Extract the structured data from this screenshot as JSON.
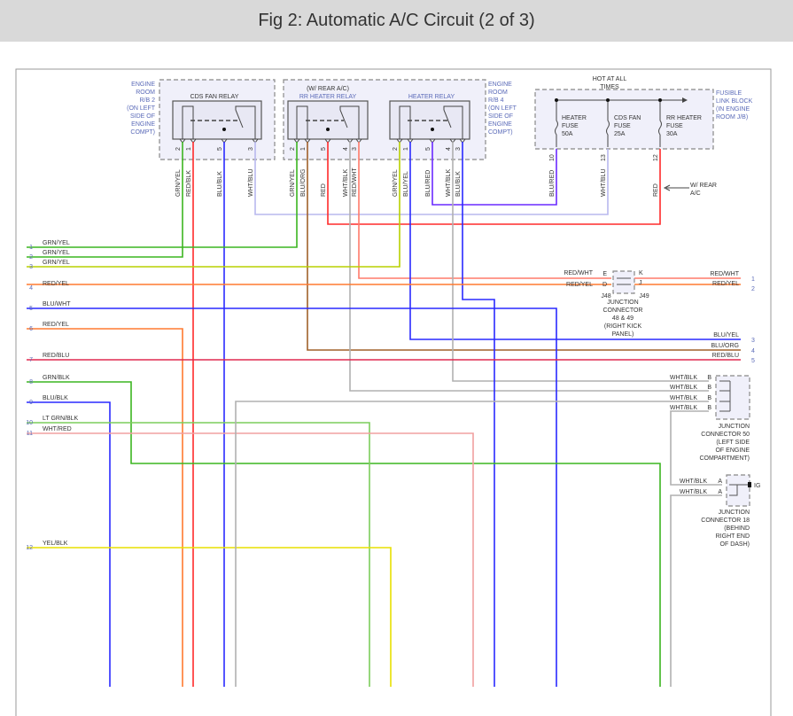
{
  "title": "Fig 2: Automatic A/C Circuit (2 of 3)",
  "colors": {
    "green": "#3cb521",
    "yelgrn": "#b8d000",
    "red": "#ff2a2a",
    "blue": "#2a2aff",
    "lavender": "#b8b8ee",
    "gray": "#b0b0b0",
    "salmon": "#ff7a6a",
    "orange": "#ff7a30",
    "brown": "#a0602a",
    "pink": "#f0a0a0",
    "ltgreen": "#7ccd5c",
    "yellow": "#e8e000",
    "blured": "#6a2aff",
    "redblu": "#e02a50"
  },
  "components": {
    "cds_fan_relay": {
      "title": "CDS FAN RELAY",
      "location": [
        "ENGINE",
        "ROOM",
        "R/B 2",
        "(ON LEFT",
        "SIDE OF",
        "ENGINE",
        "COMPT)"
      ],
      "pins": [
        "2",
        "1",
        "5",
        "3"
      ]
    },
    "rr_heater_relay": {
      "note": "(W/ REAR A/C)",
      "title": "RR HEATER RELAY",
      "pins": [
        "2",
        "1",
        "5",
        "4",
        "3"
      ]
    },
    "heater_relay": {
      "title": "HEATER RELAY",
      "location": [
        "ENGINE",
        "ROOM",
        "R/B 4",
        "(ON LEFT",
        "SIDE OF",
        "ENGINE",
        "COMPT)"
      ],
      "pins": [
        "2",
        "1",
        "5",
        "4",
        "3"
      ]
    },
    "fusible_link_block": {
      "supply": [
        "HOT AT ALL",
        "TIMES"
      ],
      "location": [
        "FUSIBLE",
        "LINK BLOCK",
        "(IN ENGINE",
        "ROOM J/B)"
      ],
      "fuses": [
        {
          "name": [
            "HEATER",
            "FUSE"
          ],
          "rating": "50A",
          "pin": "10"
        },
        {
          "name": [
            "CDS FAN",
            "FUSE"
          ],
          "rating": "25A",
          "pin": "13"
        },
        {
          "name": [
            "RR HEATER",
            "FUSE"
          ],
          "rating": "30A",
          "pin": "12"
        }
      ],
      "note": [
        "W/ REAR",
        "A/C"
      ]
    },
    "jc48_49": {
      "pins": [
        "E",
        "D",
        "K",
        "J"
      ],
      "ids": [
        "J48",
        "J49"
      ],
      "label": [
        "JUNCTION",
        "CONNECTOR",
        "48 & 49",
        "(RIGHT KICK",
        "PANEL)"
      ]
    },
    "jc50": {
      "pins": [
        "B",
        "B",
        "B",
        "B"
      ],
      "label": [
        "JUNCTION",
        "CONNECTOR 50",
        "(LEFT SIDE",
        "OF ENGINE",
        "COMPARTMENT)"
      ]
    },
    "jc18": {
      "pins": [
        "A",
        "A"
      ],
      "ig": "IG",
      "label": [
        "JUNCTION",
        "CONNECTOR 18",
        "(BEHIND",
        "RIGHT END",
        "OF DASH)"
      ]
    }
  },
  "relay_wire_labels": [
    "GRN/YEL",
    "RED/BLK",
    "BLU/BLK",
    "WHT/BLU",
    "GRN/YEL",
    "BLU/ORG",
    "RED",
    "WHT/BLK",
    "RED/WHT",
    "GRN/YEL",
    "BLU/YEL",
    "BLU/RED",
    "WHT/BLK",
    "BLU/BLK",
    "BLU/RED",
    "WHT/BLU",
    "RED"
  ],
  "left_wires": [
    {
      "num": "1",
      "label": "GRN/YEL"
    },
    {
      "num": "2",
      "label": "GRN/YEL"
    },
    {
      "num": "3",
      "label": "GRN/YEL"
    },
    {
      "num": "4",
      "label": "RED/YEL"
    },
    {
      "num": "5",
      "label": "BLU/WHT"
    },
    {
      "num": "6",
      "label": "RED/YEL"
    },
    {
      "num": "7",
      "label": "RED/BLU"
    },
    {
      "num": "8",
      "label": "GRN/BLK"
    },
    {
      "num": "9",
      "label": "BLU/BLK"
    },
    {
      "num": "10",
      "label": "LT GRN/BLK"
    },
    {
      "num": "11",
      "label": "WHT/RED"
    },
    {
      "num": "12",
      "label": "YEL/BLK"
    }
  ],
  "right_wires": [
    {
      "num": "1",
      "label": "RED/WHT"
    },
    {
      "num": "2",
      "label": "RED/YEL"
    },
    {
      "num": "3",
      "label": "BLU/YEL"
    },
    {
      "num": "4",
      "label": "BLU/ORG"
    },
    {
      "num": "5",
      "label": "RED/BLU"
    }
  ],
  "jc_wire_labels": {
    "j48": [
      "RED/WHT",
      "RED/YEL"
    ],
    "jc50": [
      "WHT/BLK",
      "WHT/BLK",
      "WHT/BLK",
      "WHT/BLK"
    ],
    "jc18": [
      "WHT/BLK",
      "WHT/BLK"
    ]
  }
}
